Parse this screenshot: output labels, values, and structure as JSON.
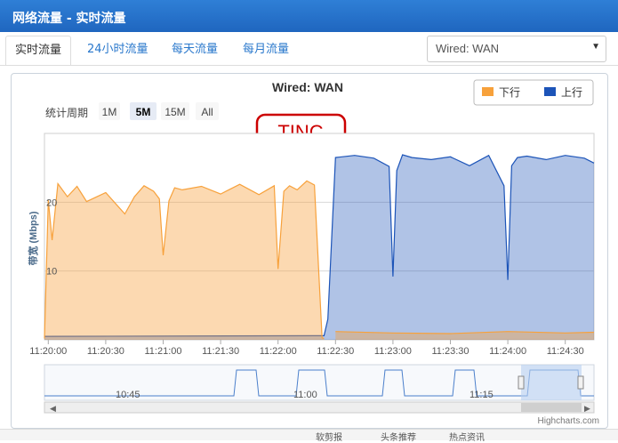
{
  "window": {
    "title": "网络流量 - 实时流量"
  },
  "tabs": [
    {
      "label": "实时流量",
      "active": true
    },
    {
      "label": "24小时流量"
    },
    {
      "label": "每天流量"
    },
    {
      "label": "每月流量"
    }
  ],
  "interface_select": {
    "value": "Wired: WAN"
  },
  "range_selector": {
    "label": "统计周期",
    "buttons": [
      "1M",
      "5M",
      "15M",
      "All"
    ],
    "selected": "5M"
  },
  "annotation": {
    "text": "TINC",
    "color": "#cc0000"
  },
  "credits": "Highcharts.com",
  "colors": {
    "download": "#f7a13b",
    "upload": "#1c54b8",
    "accent": "#1f66bf"
  },
  "footer_items": [
    "软剪报",
    "头条推荐",
    "热点资讯"
  ],
  "chart_data": {
    "type": "area",
    "title": "Wired: WAN",
    "ylabel": "带宽 (Mbps)",
    "ylim": [
      0,
      30
    ],
    "yticks": [
      "10",
      "20"
    ],
    "xlabel": "",
    "xticks": [
      "11:20:00",
      "11:20:30",
      "11:21:00",
      "11:21:30",
      "11:22:00",
      "11:22:30",
      "11:23:00",
      "11:23:30",
      "11:24:00",
      "11:24:30"
    ],
    "legend": {
      "placement": "top-right",
      "items": [
        "下行",
        "上行"
      ]
    },
    "navigator_ticks": [
      "10:45",
      "11:00",
      "11:15"
    ],
    "series": [
      {
        "name": "下行",
        "color": "#f7a13b",
        "x": [
          "11:19:58",
          "11:20:00",
          "11:20:02",
          "11:20:05",
          "11:20:10",
          "11:20:15",
          "11:20:20",
          "11:20:30",
          "11:20:40",
          "11:20:45",
          "11:20:50",
          "11:20:55",
          "11:20:58",
          "11:21:00",
          "11:21:03",
          "11:21:06",
          "11:21:10",
          "11:21:20",
          "11:21:30",
          "11:21:40",
          "11:21:50",
          "11:21:58",
          "11:22:00",
          "11:22:03",
          "11:22:06",
          "11:22:10",
          "11:22:15",
          "11:22:19",
          "11:22:23",
          "11:22:24"
        ],
        "y": [
          0.2,
          20.3,
          14.5,
          22.7,
          20.8,
          22.3,
          20.1,
          21.4,
          18.3,
          20.8,
          22.4,
          21.6,
          20.5,
          12.3,
          20.2,
          22.1,
          21.8,
          22.3,
          21.2,
          22.6,
          21.1,
          22.4,
          10.3,
          21.6,
          22.4,
          21.8,
          23.1,
          22.5,
          0.3,
          0.2
        ],
        "tail_x": [
          "11:22:30",
          "11:23:00",
          "11:23:30",
          "11:24:00",
          "11:24:30",
          "11:24:45"
        ],
        "tail_y": [
          1.2,
          1.0,
          0.9,
          1.2,
          1.0,
          1.1
        ]
      },
      {
        "name": "上行",
        "color": "#1c54b8",
        "x": [
          "11:19:58",
          "11:22:20",
          "11:22:24",
          "11:22:26",
          "11:22:30",
          "11:22:40",
          "11:22:50",
          "11:22:58",
          "11:23:00",
          "11:23:02",
          "11:23:05",
          "11:23:10",
          "11:23:20",
          "11:23:30",
          "11:23:40",
          "11:23:50",
          "11:23:58",
          "11:24:00",
          "11:24:02",
          "11:24:05",
          "11:24:10",
          "11:24:20",
          "11:24:30",
          "11:24:40",
          "11:24:45"
        ],
        "y": [
          0.5,
          0.6,
          0.6,
          3.0,
          26.5,
          26.8,
          26.4,
          25.2,
          9.2,
          24.6,
          26.9,
          26.5,
          26.2,
          26.6,
          25.3,
          26.8,
          22.4,
          8.7,
          25.3,
          26.5,
          26.7,
          26.2,
          26.8,
          26.4,
          25.7
        ]
      }
    ]
  }
}
